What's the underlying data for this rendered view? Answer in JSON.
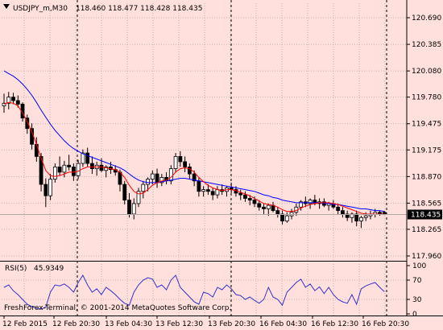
{
  "main_header": {
    "symbol": "USDJPY_m,M30",
    "ohlc": "118.460 118.477 118.428 118.435"
  },
  "price_axis": {
    "labels": [
      "120.690",
      "120.385",
      "120.080",
      "119.780",
      "119.475",
      "119.175",
      "118.870",
      "118.565",
      "118.265",
      "117.960"
    ],
    "current": "118.435"
  },
  "rsi_header": {
    "label": "RSI(5)",
    "value": "45.9349"
  },
  "rsi_axis": {
    "labels": [
      "100",
      "70",
      "30",
      "0"
    ]
  },
  "copyright": "FreshForex-Terminal, © 2001-2014 MetaQuotes Software Corp.",
  "time_axis": {
    "labels": [
      "12 Feb 2015",
      "12 Feb 20:30",
      "13 Feb 04:30",
      "13 Feb 12:30",
      "13 Feb 20:30",
      "16 Feb 04:30",
      "16 Feb 12:30",
      "16 Feb 20:30"
    ]
  },
  "colors": {
    "background": "#ffe0dc",
    "grid": "#c4b4b0",
    "candle": "#000000",
    "ma_fast": "#ff0000",
    "ma_slow": "#0000ff",
    "rsi_line": "#3333cc"
  },
  "chart_data": {
    "type": "candlestick",
    "y_range": [
      117.96,
      120.75
    ],
    "candles": [
      [
        119.68,
        119.82,
        119.6,
        119.71
      ],
      [
        119.71,
        119.84,
        119.64,
        119.78
      ],
      [
        119.78,
        119.83,
        119.7,
        119.74
      ],
      [
        119.74,
        119.8,
        119.66,
        119.7
      ],
      [
        119.7,
        119.72,
        119.5,
        119.54
      ],
      [
        119.54,
        119.58,
        119.36,
        119.42
      ],
      [
        119.42,
        119.48,
        119.18,
        119.24
      ],
      [
        119.24,
        119.32,
        119.04,
        119.1
      ],
      [
        119.1,
        119.14,
        118.7,
        118.78
      ],
      [
        118.78,
        118.85,
        118.52,
        118.65
      ],
      [
        118.65,
        118.9,
        118.6,
        118.84
      ],
      [
        118.84,
        119.02,
        118.8,
        118.98
      ],
      [
        118.98,
        119.1,
        118.88,
        118.92
      ],
      [
        118.92,
        119.05,
        118.86,
        119.0
      ],
      [
        119.0,
        119.12,
        118.94,
        118.98
      ],
      [
        118.98,
        119.02,
        118.82,
        118.88
      ],
      [
        118.88,
        119.06,
        118.84,
        119.02
      ],
      [
        119.02,
        119.18,
        118.98,
        119.14
      ],
      [
        119.14,
        119.2,
        118.98,
        119.02
      ],
      [
        119.02,
        119.1,
        118.9,
        118.96
      ],
      [
        118.96,
        119.04,
        118.88,
        119.0
      ],
      [
        119.0,
        119.08,
        118.92,
        118.94
      ],
      [
        118.94,
        119.0,
        118.86,
        118.98
      ],
      [
        118.98,
        119.04,
        118.9,
        118.95
      ],
      [
        118.95,
        119.0,
        118.88,
        118.92
      ],
      [
        118.92,
        118.95,
        118.7,
        118.78
      ],
      [
        118.78,
        118.82,
        118.55,
        118.6
      ],
      [
        118.6,
        118.68,
        118.4,
        118.44
      ],
      [
        118.44,
        118.62,
        118.38,
        118.56
      ],
      [
        118.56,
        118.74,
        118.52,
        118.7
      ],
      [
        118.7,
        118.82,
        118.62,
        118.78
      ],
      [
        118.78,
        118.86,
        118.7,
        118.84
      ],
      [
        118.84,
        118.94,
        118.78,
        118.9
      ],
      [
        118.9,
        118.96,
        118.74,
        118.8
      ],
      [
        118.8,
        118.9,
        118.76,
        118.86
      ],
      [
        118.86,
        118.92,
        118.78,
        118.82
      ],
      [
        118.82,
        119.0,
        118.78,
        118.96
      ],
      [
        118.96,
        119.14,
        118.92,
        119.1
      ],
      [
        119.1,
        119.16,
        118.98,
        119.04
      ],
      [
        119.04,
        119.1,
        118.92,
        118.98
      ],
      [
        118.98,
        119.02,
        118.84,
        118.9
      ],
      [
        118.9,
        118.94,
        118.76,
        118.82
      ],
      [
        118.82,
        118.86,
        118.64,
        118.7
      ],
      [
        118.7,
        118.76,
        118.64,
        118.72
      ],
      [
        118.72,
        118.78,
        118.66,
        118.7
      ],
      [
        118.7,
        118.74,
        118.6,
        118.66
      ],
      [
        118.66,
        118.76,
        118.62,
        118.72
      ],
      [
        118.72,
        118.78,
        118.66,
        118.7
      ],
      [
        118.7,
        118.76,
        118.64,
        118.74
      ],
      [
        118.74,
        118.8,
        118.68,
        118.72
      ],
      [
        118.72,
        118.76,
        118.64,
        118.68
      ],
      [
        118.68,
        118.72,
        118.6,
        118.66
      ],
      [
        118.66,
        118.7,
        118.58,
        118.62
      ],
      [
        118.62,
        118.66,
        118.54,
        118.6
      ],
      [
        118.6,
        118.64,
        118.52,
        118.56
      ],
      [
        118.56,
        118.6,
        118.48,
        118.52
      ],
      [
        118.52,
        118.56,
        118.44,
        118.5
      ],
      [
        118.5,
        118.56,
        118.42,
        118.54
      ],
      [
        118.54,
        118.58,
        118.46,
        118.48
      ],
      [
        118.48,
        118.52,
        118.4,
        118.44
      ],
      [
        118.44,
        118.48,
        118.32,
        118.36
      ],
      [
        118.36,
        118.46,
        118.34,
        118.42
      ],
      [
        118.42,
        118.5,
        118.38,
        118.46
      ],
      [
        118.46,
        118.56,
        118.42,
        118.52
      ],
      [
        118.52,
        118.6,
        118.48,
        118.58
      ],
      [
        118.58,
        118.64,
        118.52,
        118.56
      ],
      [
        118.56,
        118.62,
        118.5,
        118.6
      ],
      [
        118.6,
        118.66,
        118.54,
        118.56
      ],
      [
        118.56,
        118.62,
        118.5,
        118.58
      ],
      [
        118.58,
        118.62,
        118.52,
        118.54
      ],
      [
        118.54,
        118.58,
        118.48,
        118.56
      ],
      [
        118.56,
        118.6,
        118.5,
        118.52
      ],
      [
        118.52,
        118.56,
        118.44,
        118.48
      ],
      [
        118.48,
        118.52,
        118.4,
        118.44
      ],
      [
        118.44,
        118.48,
        118.36,
        118.4
      ],
      [
        118.4,
        118.46,
        118.34,
        118.44
      ],
      [
        118.44,
        118.48,
        118.3,
        118.36
      ],
      [
        118.36,
        118.42,
        118.28,
        118.4
      ],
      [
        118.4,
        118.46,
        118.36,
        118.42
      ],
      [
        118.42,
        118.48,
        118.38,
        118.44
      ],
      [
        118.44,
        118.5,
        118.4,
        118.46
      ],
      [
        118.46,
        118.48,
        118.42,
        118.44
      ],
      [
        118.46,
        118.477,
        118.428,
        118.435
      ]
    ],
    "ma_fast": [
      119.7,
      119.72,
      119.71,
      119.68,
      119.6,
      119.5,
      119.38,
      119.24,
      119.08,
      118.94,
      118.88,
      118.87,
      118.88,
      118.9,
      118.92,
      118.92,
      118.93,
      118.96,
      118.98,
      118.98,
      118.98,
      118.98,
      118.97,
      118.96,
      118.95,
      118.92,
      118.86,
      118.77,
      118.7,
      118.67,
      118.68,
      118.72,
      118.77,
      118.8,
      118.82,
      118.83,
      118.86,
      118.92,
      118.96,
      118.97,
      118.96,
      118.92,
      118.86,
      118.81,
      118.77,
      118.74,
      118.72,
      118.71,
      118.72,
      118.72,
      118.71,
      118.69,
      118.67,
      118.65,
      118.62,
      118.59,
      118.56,
      118.55,
      118.54,
      118.52,
      118.49,
      118.47,
      118.47,
      118.48,
      118.51,
      118.53,
      118.55,
      118.56,
      118.57,
      118.57,
      118.57,
      118.56,
      118.55,
      118.53,
      118.51,
      118.49,
      118.47,
      118.45,
      118.44,
      118.44,
      118.44,
      118.44,
      118.44
    ],
    "ma_slow": [
      120.08,
      120.05,
      120.02,
      119.98,
      119.93,
      119.87,
      119.8,
      119.72,
      119.63,
      119.55,
      119.47,
      119.4,
      119.34,
      119.28,
      119.23,
      119.19,
      119.16,
      119.13,
      119.11,
      119.09,
      119.07,
      119.05,
      119.03,
      119.01,
      118.99,
      118.97,
      118.94,
      118.9,
      118.86,
      118.83,
      118.81,
      118.8,
      118.8,
      118.8,
      118.81,
      118.82,
      118.83,
      118.84,
      118.85,
      118.85,
      118.84,
      118.83,
      118.82,
      118.81,
      118.8,
      118.79,
      118.78,
      118.77,
      118.76,
      118.75,
      118.74,
      118.73,
      118.72,
      118.71,
      118.7,
      118.68,
      118.66,
      118.65,
      118.63,
      118.62,
      118.6,
      118.59,
      118.58,
      118.57,
      118.57,
      118.57,
      118.57,
      118.57,
      118.57,
      118.56,
      118.56,
      118.55,
      118.55,
      118.54,
      118.53,
      118.52,
      118.51,
      118.5,
      118.5,
      118.49,
      118.48,
      118.48,
      118.47
    ],
    "rsi": [
      55,
      60,
      48,
      40,
      30,
      20,
      15,
      12,
      10,
      14,
      45,
      60,
      58,
      62,
      55,
      45,
      65,
      80,
      60,
      45,
      52,
      40,
      55,
      48,
      40,
      30,
      22,
      18,
      45,
      60,
      70,
      75,
      72,
      55,
      60,
      50,
      70,
      80,
      55,
      45,
      35,
      25,
      20,
      45,
      42,
      35,
      55,
      50,
      60,
      52,
      40,
      38,
      30,
      35,
      28,
      22,
      30,
      55,
      35,
      30,
      18,
      45,
      55,
      65,
      72,
      55,
      62,
      48,
      56,
      42,
      55,
      40,
      30,
      25,
      22,
      40,
      20,
      52,
      58,
      62,
      65,
      55,
      45.93
    ],
    "rsi_range": [
      0,
      100
    ],
    "rsi_levels": [
      70,
      30
    ]
  }
}
